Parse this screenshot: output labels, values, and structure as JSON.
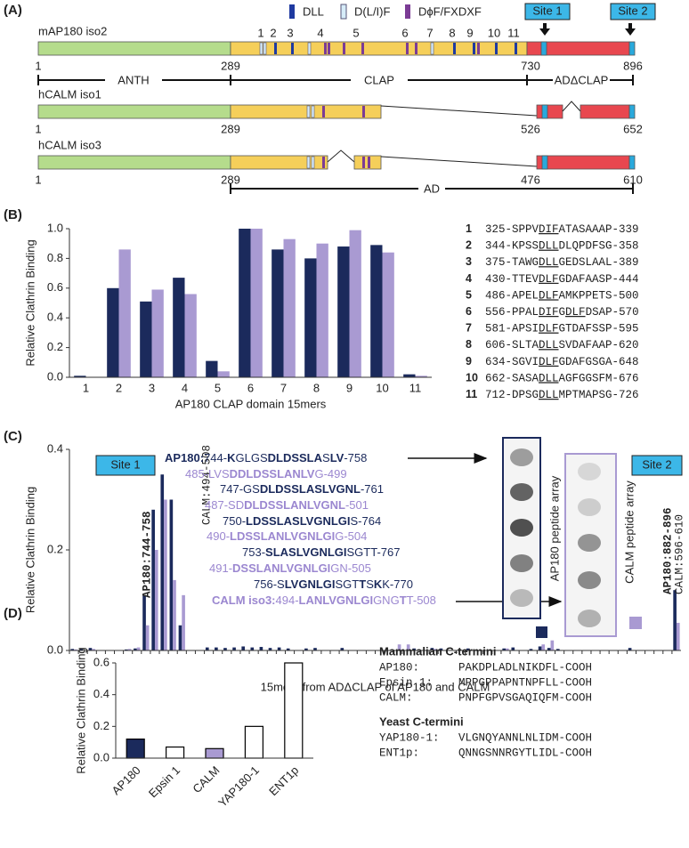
{
  "panel_labels": [
    "(A)",
    "(B)",
    "(C)",
    "(D)"
  ],
  "panel_a": {
    "legend": [
      "DLL",
      "D(L/I)F",
      "DϕF/FXDXF"
    ],
    "sites": [
      "Site 1",
      "Site 2"
    ],
    "motif_numbers": [
      "1",
      "2",
      "3",
      "4",
      "5",
      "6",
      "7",
      "8",
      "9",
      "10",
      "11"
    ],
    "proteins": [
      {
        "name": "mAP180 iso2",
        "positions": [
          1,
          289,
          730,
          896
        ]
      },
      {
        "name": "hCALM iso1",
        "positions": [
          1,
          289,
          526,
          652
        ]
      },
      {
        "name": "hCALM iso3",
        "positions": [
          1,
          289,
          476,
          610
        ]
      }
    ],
    "domains": [
      "ANTH",
      "CLAP",
      "ADΔCLAP"
    ],
    "ad_label": "AD"
  },
  "chart_data": [
    {
      "type": "bar",
      "y_label": "Relative Clathrin Binding",
      "x_label": "AP180 CLAP domain 15mers",
      "categories": [
        "1",
        "2",
        "3",
        "4",
        "5",
        "6",
        "7",
        "8",
        "9",
        "10",
        "11"
      ],
      "series": [
        {
          "name": "AP180",
          "color": "#1b2a5c",
          "values": [
            0.01,
            0.6,
            0.51,
            0.67,
            0.11,
            1.0,
            0.86,
            0.8,
            0.88,
            0.89,
            0.02
          ]
        },
        {
          "name": "CALM",
          "color": "#a99ad2",
          "values": [
            0,
            0.86,
            0.59,
            0.56,
            0.04,
            1.0,
            0.93,
            0.9,
            0.99,
            0.84,
            0.01
          ]
        }
      ],
      "ylim": [
        0,
        1
      ],
      "yticks": [
        {
          "value": 0,
          "label": "0.0"
        },
        0.2,
        0.4,
        0.6,
        0.8,
        {
          "value": 1,
          "label": "1.0"
        }
      ]
    },
    {
      "type": "bar",
      "y_label": "Relative Clathrin Binding",
      "x_label": "15mers from ADΔCLAP of AP180 and CALM",
      "categories": [
        null,
        null,
        null,
        null,
        null,
        null,
        null,
        null,
        null,
        null,
        null,
        null,
        null,
        null,
        null,
        null,
        null,
        null,
        null,
        null,
        null,
        null,
        null,
        null,
        null,
        null,
        null,
        null,
        null,
        null,
        null,
        null,
        null,
        null,
        null,
        null,
        null,
        null,
        null,
        null,
        null,
        null,
        null,
        null,
        null,
        null,
        null,
        null,
        null,
        null,
        null,
        null,
        null,
        null,
        null,
        null,
        null,
        null,
        null,
        null,
        null,
        null,
        null,
        null,
        null,
        null,
        null,
        null
      ],
      "series": [
        {
          "name": "AP180",
          "color": "#1b2a5c",
          "values": [
            0.003,
            0.003,
            0.005,
            0,
            0,
            0,
            0.002,
            0.004,
            0.11,
            0.28,
            0.35,
            0.3,
            0.05,
            0,
            0,
            0.006,
            0.006,
            0.005,
            0.006,
            0.008,
            0.006,
            0.007,
            0.005,
            0.006,
            0.004,
            0,
            0.004,
            0.005,
            0,
            0,
            0.005,
            0,
            0,
            0,
            0,
            0,
            0,
            0,
            0.004,
            0,
            0.005,
            0.004,
            0,
            0,
            0.004,
            0,
            0,
            0,
            0.004,
            0.006,
            0,
            0.003,
            0.008,
            0.005,
            0.003,
            0,
            0,
            0,
            0,
            0,
            0,
            0,
            0.005,
            0,
            0,
            0,
            0,
            0.12
          ]
        },
        {
          "name": "CALM",
          "color": "#a99ad2",
          "values": [
            0.002,
            0,
            0.003,
            0,
            0,
            0,
            0.003,
            0.006,
            0.05,
            0.2,
            0.3,
            0.14,
            0.11,
            0,
            0,
            0,
            0,
            0,
            0,
            0,
            0,
            0,
            0,
            0,
            0,
            0,
            0,
            0,
            0,
            0,
            0,
            0,
            0,
            0,
            0,
            0,
            0.012,
            0.012,
            0,
            0,
            0.003,
            0,
            0,
            0,
            0,
            0,
            0,
            0,
            0.004,
            0,
            0,
            0,
            0.012,
            0.02,
            0,
            0,
            0,
            0,
            0,
            0,
            0,
            0,
            0,
            0,
            0,
            0,
            0,
            0.055
          ]
        }
      ],
      "ylim": [
        0,
        0.4
      ],
      "yticks": [
        {
          "value": 0,
          "label": "0.0"
        },
        0.2,
        0.4
      ]
    },
    {
      "type": "bar",
      "y_label": "Relative Clathrin Binding",
      "categories": [
        "AP180",
        "Epsin 1",
        "CALM",
        "YAP180-1",
        "ENT1p"
      ],
      "values": [
        0.12,
        0.07,
        0.06,
        0.2,
        0.6
      ],
      "colors": [
        "#1b2a5c",
        "#ffffff",
        "#a99ad2",
        "#ffffff",
        "#ffffff"
      ],
      "edgecolor": "#000000",
      "ylim": [
        0,
        0.6
      ],
      "yticks": [
        {
          "value": 0,
          "label": "0.0"
        },
        0.2,
        0.4,
        0.6
      ]
    }
  ],
  "panel_b_sequences": [
    {
      "number": "1",
      "segments": [
        "325-SPPV",
        "DIF",
        "ATASAAAP-339"
      ]
    },
    {
      "number": "2",
      "segments": [
        "344-KPSS",
        "DLL",
        "DLQPDFSG-358"
      ]
    },
    {
      "number": "3",
      "segments": [
        "375-TAWG",
        "DLL",
        "GEDSLAAL-389"
      ]
    },
    {
      "number": "4",
      "segments": [
        "430-TTEV",
        "DLF",
        "GDAFAASP-444"
      ]
    },
    {
      "number": "5",
      "segments": [
        "486-APEL",
        "DLF",
        "AMKPPETS-500"
      ]
    },
    {
      "number": "6",
      "segments": [
        "556-PPAL",
        "DIF",
        "G",
        "DLF",
        "DSAP-570"
      ]
    },
    {
      "number": "7",
      "segments": [
        "581-APSI",
        "DLF",
        "GTDAFSSP-595"
      ]
    },
    {
      "number": "8",
      "segments": [
        "606-SLTA",
        "DLL",
        "SVDAFAAP-620"
      ]
    },
    {
      "number": "9",
      "segments": [
        "634-SGVI",
        "DLF",
        "GDAFGSGA-648"
      ]
    },
    {
      "number": "10",
      "segments": [
        "662-SASA",
        "DLL",
        "AGFGGSFM-676"
      ]
    },
    {
      "number": "11",
      "segments": [
        "712-DPSG",
        "DLL",
        "MPTMAPSG-726"
      ]
    }
  ],
  "panel_c": {
    "sites": [
      "Site 1",
      "Site 2"
    ],
    "site_labels": [
      {
        "text": "AP180:744-758",
        "color": "#1b2a5c"
      },
      {
        "text": "CALM:494-508",
        "color": "#a99ad2"
      },
      {
        "text": "AP180:882-896",
        "color": "#1b2a5c"
      },
      {
        "text": "CALM:596-610",
        "color": "#a99ad2"
      }
    ],
    "peptides": [
      {
        "color": "#1b2a5c",
        "segments": [
          [
            "AP180:",
            true
          ],
          [
            "744-",
            false
          ],
          [
            "K",
            true
          ],
          [
            "GLGS",
            false
          ],
          [
            "DLDSSLA",
            true
          ],
          [
            "S",
            false
          ],
          [
            "LV",
            true
          ],
          [
            "-758",
            false
          ]
        ]
      },
      {
        "color": "#9b87d0",
        "segments": [
          [
            "485-LVS",
            false
          ],
          [
            "DDLDSSLANLV",
            true
          ],
          [
            "G-499",
            false
          ]
        ]
      },
      {
        "color": "#1b2a5c",
        "segments": [
          [
            "747-GS",
            false
          ],
          [
            "DLDSSLASLVGNL",
            true
          ],
          [
            "-761",
            false
          ]
        ]
      },
      {
        "color": "#9b87d0",
        "segments": [
          [
            "487-SD",
            false
          ],
          [
            "DLDSSLANLVGNL",
            true
          ],
          [
            "-501",
            false
          ]
        ]
      },
      {
        "color": "#1b2a5c",
        "segments": [
          [
            "750-",
            false
          ],
          [
            "LDSSLASLVGNLGI",
            true
          ],
          [
            "S-764",
            false
          ]
        ]
      },
      {
        "color": "#9b87d0",
        "segments": [
          [
            "490-",
            false
          ],
          [
            "LDSSLANLVGNLGI",
            true
          ],
          [
            "G-504",
            false
          ]
        ]
      },
      {
        "color": "#1b2a5c",
        "segments": [
          [
            "753-",
            false
          ],
          [
            "SLASLVGNLGI",
            true
          ],
          [
            "SGTT-767",
            false
          ]
        ]
      },
      {
        "color": "#9b87d0",
        "segments": [
          [
            "491-",
            false
          ],
          [
            "DSSLANLVGNLGI",
            true
          ],
          [
            "GN-505",
            false
          ]
        ]
      },
      {
        "color": "#1b2a5c",
        "segments": [
          [
            "756-S",
            false
          ],
          [
            "LVGNLGI",
            true
          ],
          [
            "SGT",
            false
          ],
          [
            "T",
            true
          ],
          [
            "S",
            false
          ],
          [
            "K",
            true
          ],
          [
            "K-770",
            false
          ]
        ]
      },
      {
        "color": "#9b87d0",
        "segments": [
          [
            "CALM iso3:",
            true
          ],
          [
            "494-",
            false
          ],
          [
            "LANLVGNLGI",
            true
          ],
          [
            "GNG",
            false
          ],
          [
            "T",
            true
          ],
          [
            "T-508",
            false
          ]
        ]
      }
    ],
    "array_labels": [
      "AP180 peptide array",
      "CALM peptide array"
    ]
  },
  "panel_d": {
    "groups": [
      {
        "title": "Mammalian C-termini",
        "rows": [
          {
            "name": "AP180:",
            "sequence": "PAKDPLADLNIKDFL-COOH",
            "color": "#3b5a9b"
          },
          {
            "name": "Epsin 1:",
            "sequence": "MPPGPPAPNTNPFLL-COOH",
            "color": "#222222"
          },
          {
            "name": "CALM:",
            "sequence": "PNPFGPVSGAQIQFM-COOH",
            "color": "#9b87d0"
          }
        ]
      },
      {
        "title": "Yeast C-termini",
        "rows": [
          {
            "name": "YAP180-1:",
            "sequence": "VLGNQYANNLNLIDM-COOH",
            "color": "#222222"
          },
          {
            "name": "ENT1p:",
            "sequence": "QNNGSNNRGYTLIDL-COOH",
            "color": "#222222"
          }
        ]
      }
    ]
  }
}
